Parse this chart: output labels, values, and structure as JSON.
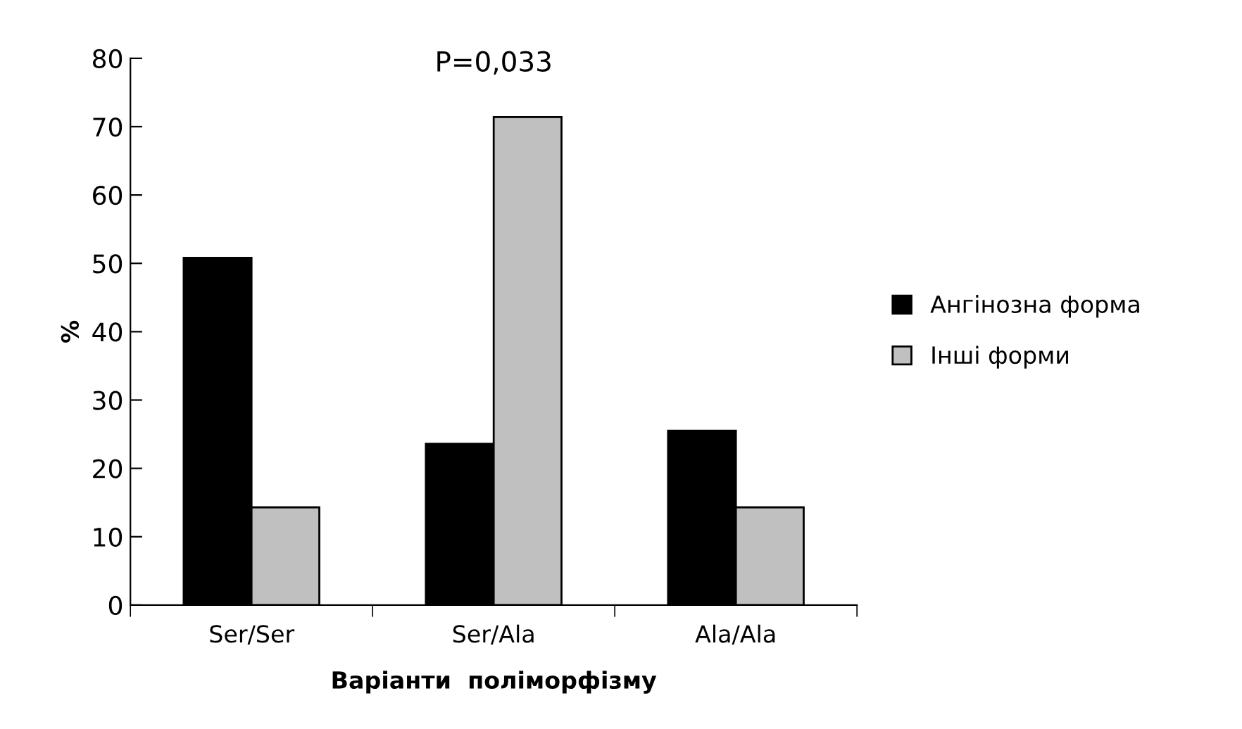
{
  "chart_data": {
    "type": "bar",
    "xlabel": "Варіанти  поліморфізму",
    "ylabel": "%",
    "categories": [
      "Ser/Ser",
      "Ser/Ala",
      "Ala/Ala"
    ],
    "series": [
      {
        "name": "Ангінозна форма",
        "color": "#000000",
        "values": [
          50.8,
          23.6,
          25.5
        ]
      },
      {
        "name": "Інші форми",
        "color": "#c0c0c0",
        "values": [
          14.3,
          71.4,
          14.3
        ]
      }
    ],
    "ylim": [
      0,
      80
    ],
    "yticks": [
      0,
      10,
      20,
      30,
      40,
      50,
      60,
      70,
      80
    ],
    "annotations": [
      "P=0,033"
    ],
    "legend": "right",
    "grid": false
  }
}
